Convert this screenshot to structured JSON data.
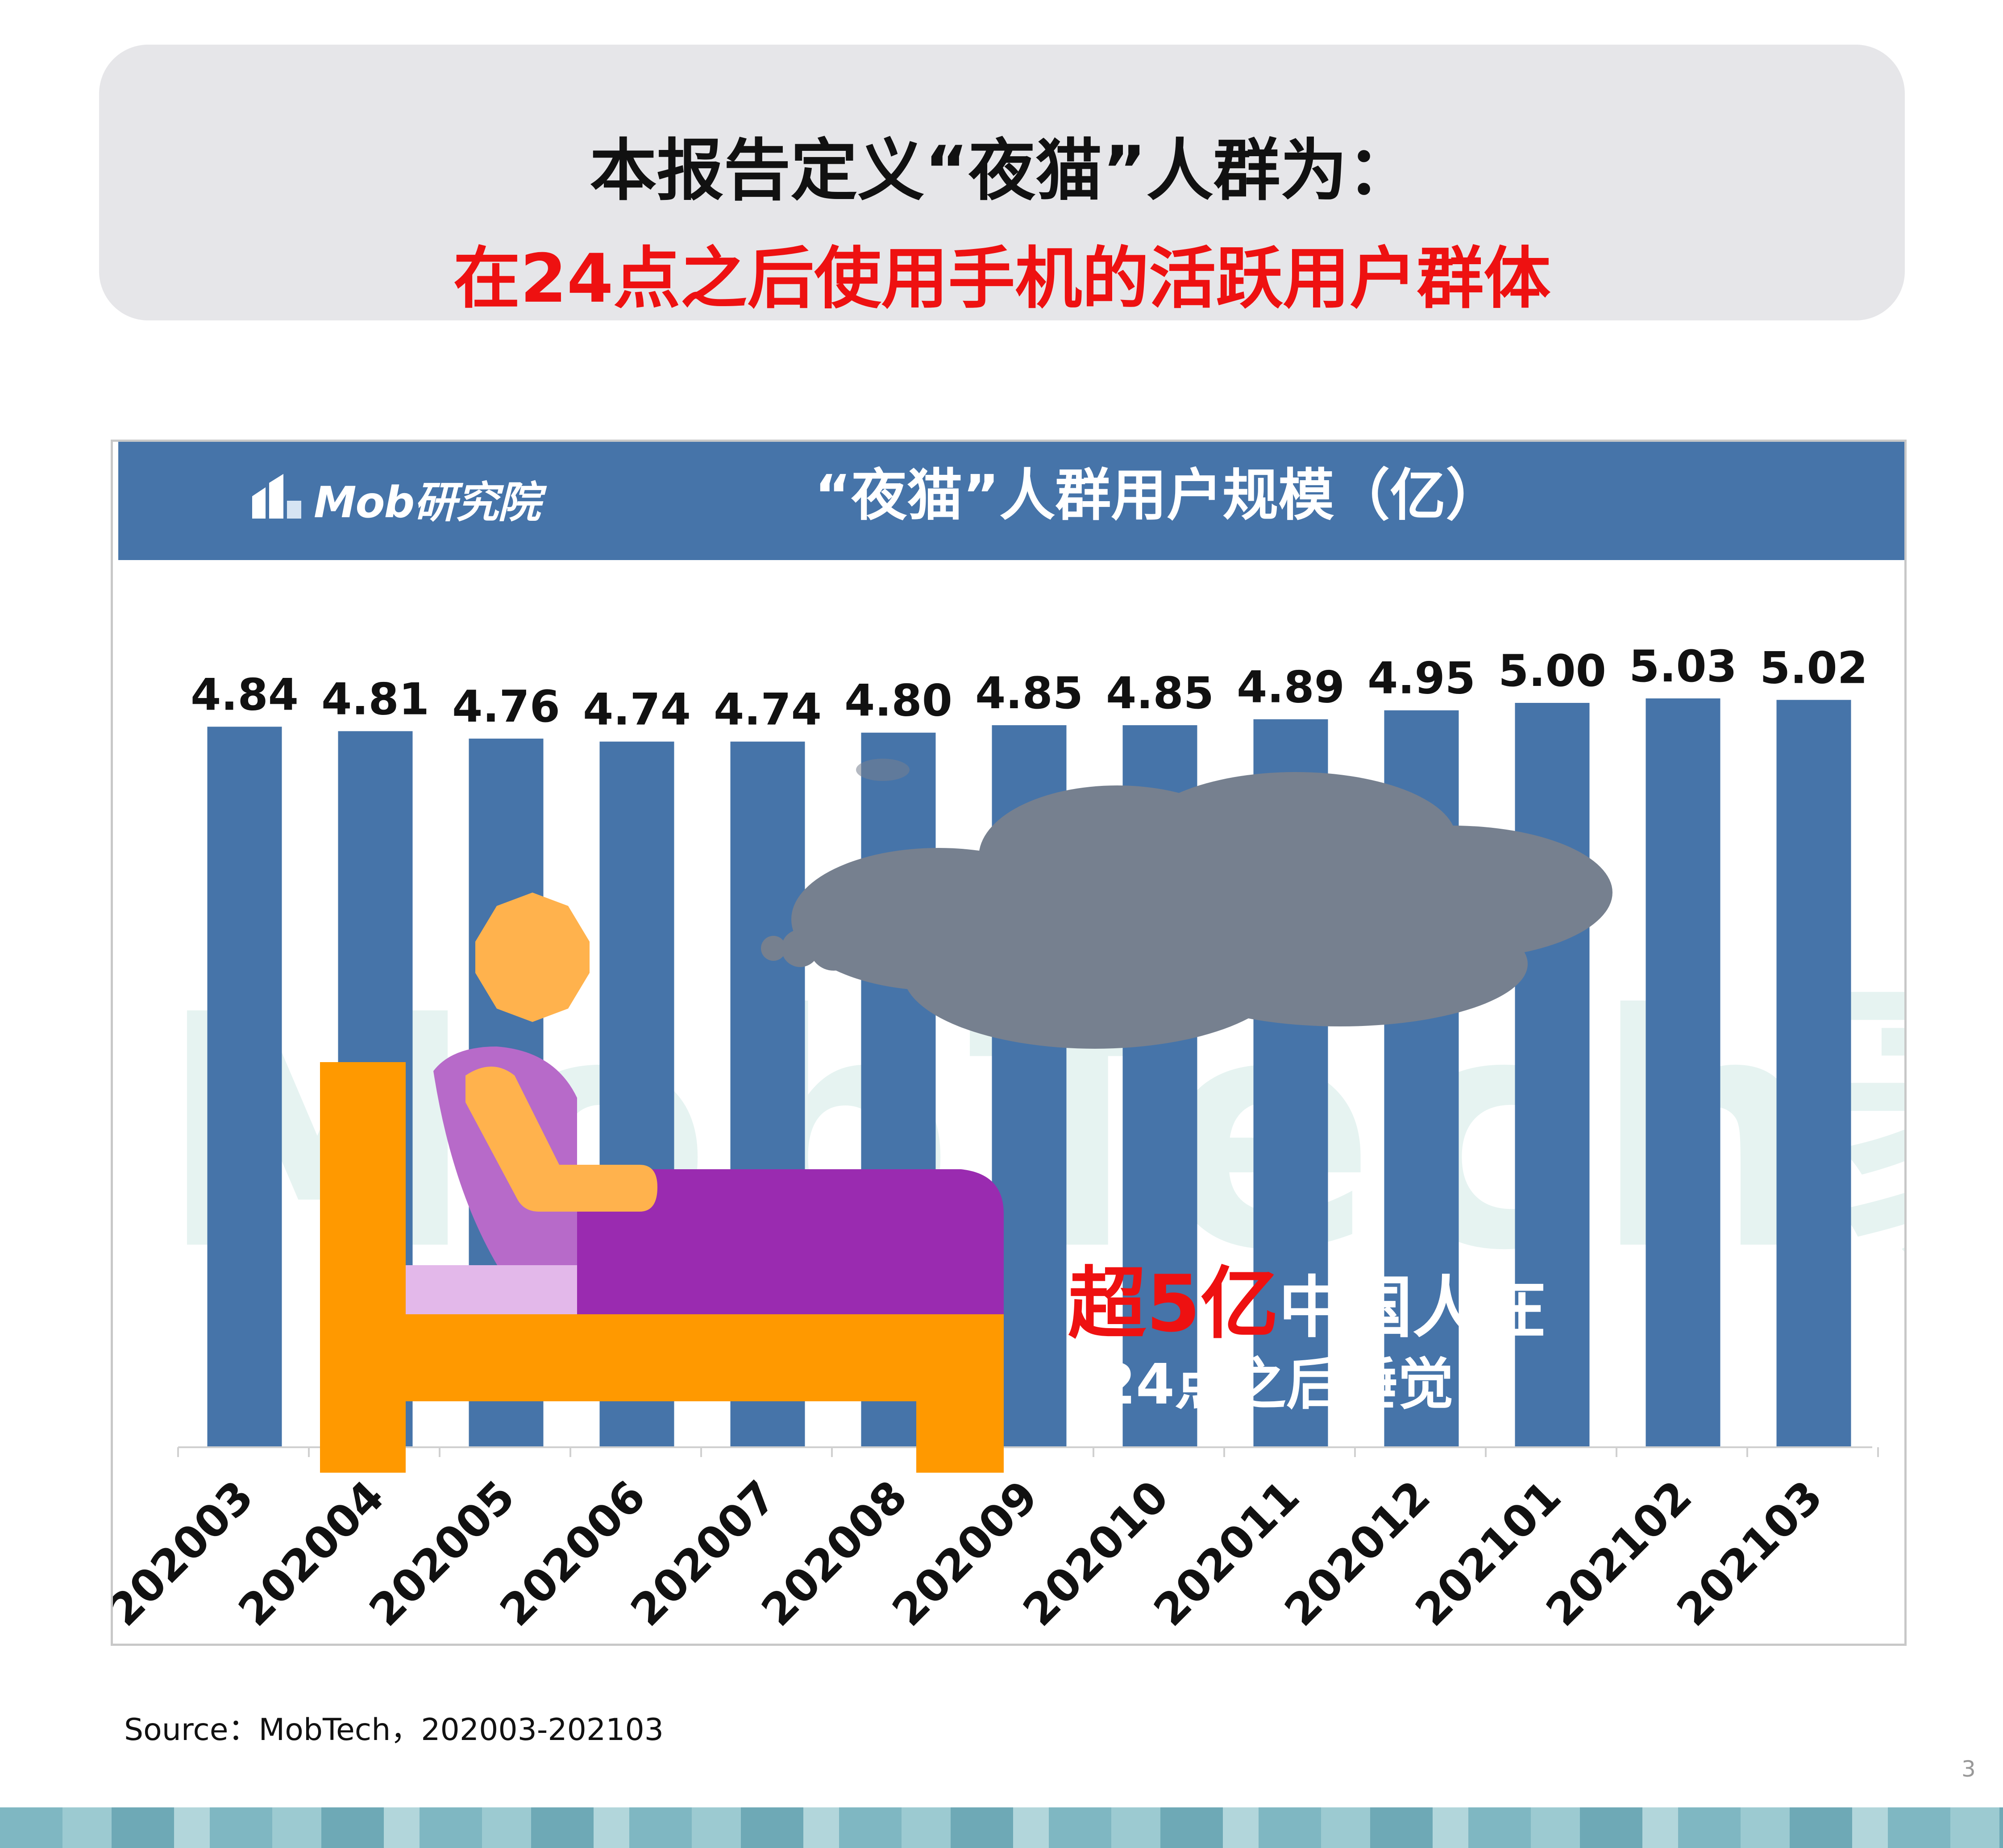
{
  "header": {
    "line1": "本报告定义“夜猫”人群为：",
    "line2": "在24点之后使用手机的活跃用户群体"
  },
  "brand": {
    "name": "Mob研究院",
    "watermark": "MobTech袤博"
  },
  "callout": {
    "highlight": "超5亿",
    "text_line1": "中国人在",
    "text_line2": "24点之后睡觉"
  },
  "source": "Source：MobTech，202003-202103",
  "page_number": "3",
  "colors": {
    "bar": "#4674a9",
    "banner": "#4674a9",
    "highlight_red": "#ee1111",
    "cloud": "#76808f",
    "bed": "#ff9900",
    "blanket": "#9a2bb0",
    "head": "#ffb24d"
  },
  "chart_data": {
    "type": "bar",
    "title": "“夜猫”人群用户规模（亿）",
    "categories": [
      "202003",
      "202004",
      "202005",
      "202006",
      "202007",
      "202008",
      "202009",
      "202010",
      "202011",
      "202012",
      "202101",
      "202102",
      "202103"
    ],
    "values": [
      4.84,
      4.81,
      4.76,
      4.74,
      4.74,
      4.8,
      4.85,
      4.85,
      4.89,
      4.95,
      5.0,
      5.03,
      5.02
    ],
    "value_labels": [
      "4.84",
      "4.81",
      "4.76",
      "4.74",
      "4.74",
      "4.80",
      "4.85",
      "4.85",
      "4.89",
      "4.95",
      "5.00",
      "5.03",
      "5.02"
    ],
    "xlabel": "",
    "ylabel": "",
    "grid": false,
    "legend": false
  }
}
